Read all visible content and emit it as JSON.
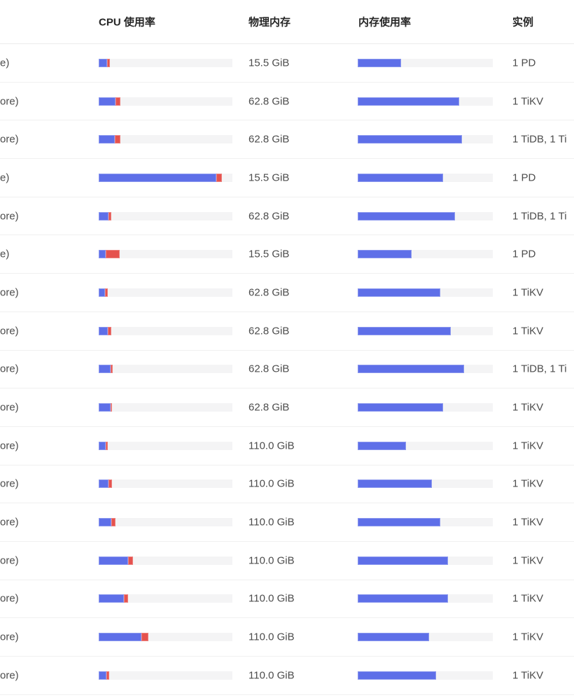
{
  "table": {
    "columns": {
      "cpu_usage": "CPU 使用率",
      "physical_memory": "物理内存",
      "memory_usage": "内存使用率",
      "instance": "实例"
    },
    "note_host_column_truncated": "host name column clipped at left viewport edge",
    "rows": [
      {
        "host_fragment": "e)",
        "cpu_user_pct": 6.3,
        "cpu_other_pct": 2.1,
        "physical_memory": "15.5 GiB",
        "mem_used_pct": 32,
        "instance": "1 PD"
      },
      {
        "host_fragment": "ore)",
        "cpu_user_pct": 12.5,
        "cpu_other_pct": 3.5,
        "physical_memory": "62.8 GiB",
        "mem_used_pct": 75,
        "instance": "1 TiKV"
      },
      {
        "host_fragment": "ore)",
        "cpu_user_pct": 12.0,
        "cpu_other_pct": 4.0,
        "physical_memory": "62.8 GiB",
        "mem_used_pct": 77,
        "instance": "1 TiDB, 1 Ti"
      },
      {
        "host_fragment": "e)",
        "cpu_user_pct": 88.0,
        "cpu_other_pct": 4.2,
        "physical_memory": "15.5 GiB",
        "mem_used_pct": 63,
        "instance": "1 PD"
      },
      {
        "host_fragment": "ore)",
        "cpu_user_pct": 7.3,
        "cpu_other_pct": 2.1,
        "physical_memory": "62.8 GiB",
        "mem_used_pct": 72,
        "instance": "1 TiDB, 1 Ti"
      },
      {
        "host_fragment": "e)",
        "cpu_user_pct": 5.2,
        "cpu_other_pct": 10.4,
        "physical_memory": "15.5 GiB",
        "mem_used_pct": 40,
        "instance": "1 PD"
      },
      {
        "host_fragment": "ore)",
        "cpu_user_pct": 4.7,
        "cpu_other_pct": 2.1,
        "physical_memory": "62.8 GiB",
        "mem_used_pct": 61,
        "instance": "1 TiKV"
      },
      {
        "host_fragment": "ore)",
        "cpu_user_pct": 6.8,
        "cpu_other_pct": 2.6,
        "physical_memory": "62.8 GiB",
        "mem_used_pct": 69,
        "instance": "1 TiKV"
      },
      {
        "host_fragment": "ore)",
        "cpu_user_pct": 8.9,
        "cpu_other_pct": 1.6,
        "physical_memory": "62.8 GiB",
        "mem_used_pct": 79,
        "instance": "1 TiDB, 1 Ti"
      },
      {
        "host_fragment": "ore)",
        "cpu_user_pct": 8.9,
        "cpu_other_pct": 1.0,
        "physical_memory": "62.8 GiB",
        "mem_used_pct": 63,
        "instance": "1 TiKV"
      },
      {
        "host_fragment": "ore)",
        "cpu_user_pct": 5.2,
        "cpu_other_pct": 1.6,
        "physical_memory": "110.0 GiB",
        "mem_used_pct": 36,
        "instance": "1 TiKV"
      },
      {
        "host_fragment": "ore)",
        "cpu_user_pct": 7.3,
        "cpu_other_pct": 2.6,
        "physical_memory": "110.0 GiB",
        "mem_used_pct": 55,
        "instance": "1 TiKV"
      },
      {
        "host_fragment": "ore)",
        "cpu_user_pct": 9.4,
        "cpu_other_pct": 3.1,
        "physical_memory": "110.0 GiB",
        "mem_used_pct": 61,
        "instance": "1 TiKV"
      },
      {
        "host_fragment": "ore)",
        "cpu_user_pct": 22.0,
        "cpu_other_pct": 3.6,
        "physical_memory": "110.0 GiB",
        "mem_used_pct": 67,
        "instance": "1 TiKV"
      },
      {
        "host_fragment": "ore)",
        "cpu_user_pct": 18.8,
        "cpu_other_pct": 3.1,
        "physical_memory": "110.0 GiB",
        "mem_used_pct": 67,
        "instance": "1 TiKV"
      },
      {
        "host_fragment": "ore)",
        "cpu_user_pct": 32.0,
        "cpu_other_pct": 5.2,
        "physical_memory": "110.0 GiB",
        "mem_used_pct": 53,
        "instance": "1 TiKV"
      },
      {
        "host_fragment": "ore)",
        "cpu_user_pct": 5.7,
        "cpu_other_pct": 2.1,
        "physical_memory": "110.0 GiB",
        "mem_used_pct": 58,
        "instance": "1 TiKV"
      }
    ]
  },
  "colors": {
    "bar_primary_blue": "#5e6fe8",
    "bar_secondary_red": "#e5524e",
    "bar_track_gray": "#f4f4f5",
    "row_divider": "#f0f0f0",
    "header_text": "#262626",
    "body_text": "#4c4c4c"
  }
}
